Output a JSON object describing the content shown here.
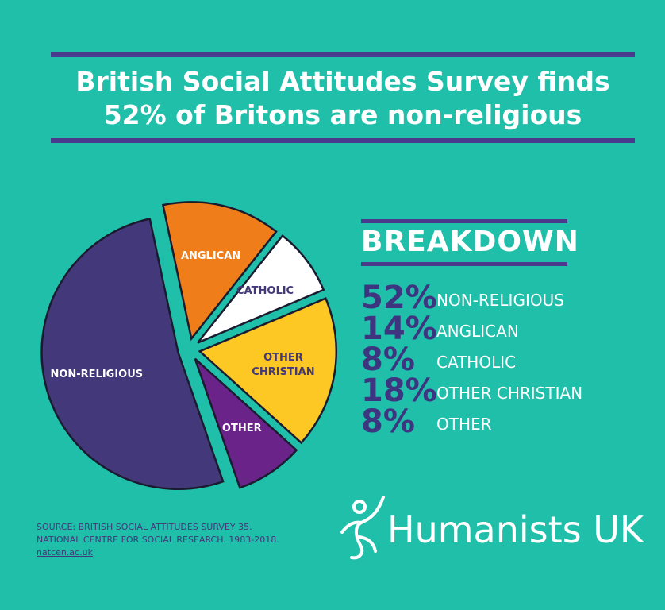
{
  "chart_data": {
    "type": "pie",
    "title": "British Social Attitudes Survey finds 52% of Britons are non-religious",
    "categories": [
      "ANGLICAN",
      "CATHOLIC",
      "OTHER CHRISTIAN",
      "OTHER",
      "NON-RELIGIOUS"
    ],
    "values": [
      14,
      8,
      18,
      8,
      52
    ],
    "value_labels": [
      "14%",
      "8%",
      "18%",
      "8%",
      "52%"
    ],
    "colors": [
      "#ef7d1a",
      "#ffffff",
      "#fdc823",
      "#6a2389",
      "#43387a"
    ],
    "label_colors": [
      "#ffffff",
      "#43387a",
      "#43387a",
      "#ffffff",
      "#ffffff"
    ],
    "breakdown_title": "BREAKDOWN",
    "breakdown_order": [
      4,
      0,
      1,
      2,
      3
    ]
  },
  "source": [
    "SOURCE: BRITISH SOCIAL ATTITUDES SURVEY 35.",
    "NATIONAL CENTRE FOR SOCIAL RESEARCH. 1983-2018.",
    "natcen.ac.uk"
  ],
  "logo": "Humanists UK"
}
